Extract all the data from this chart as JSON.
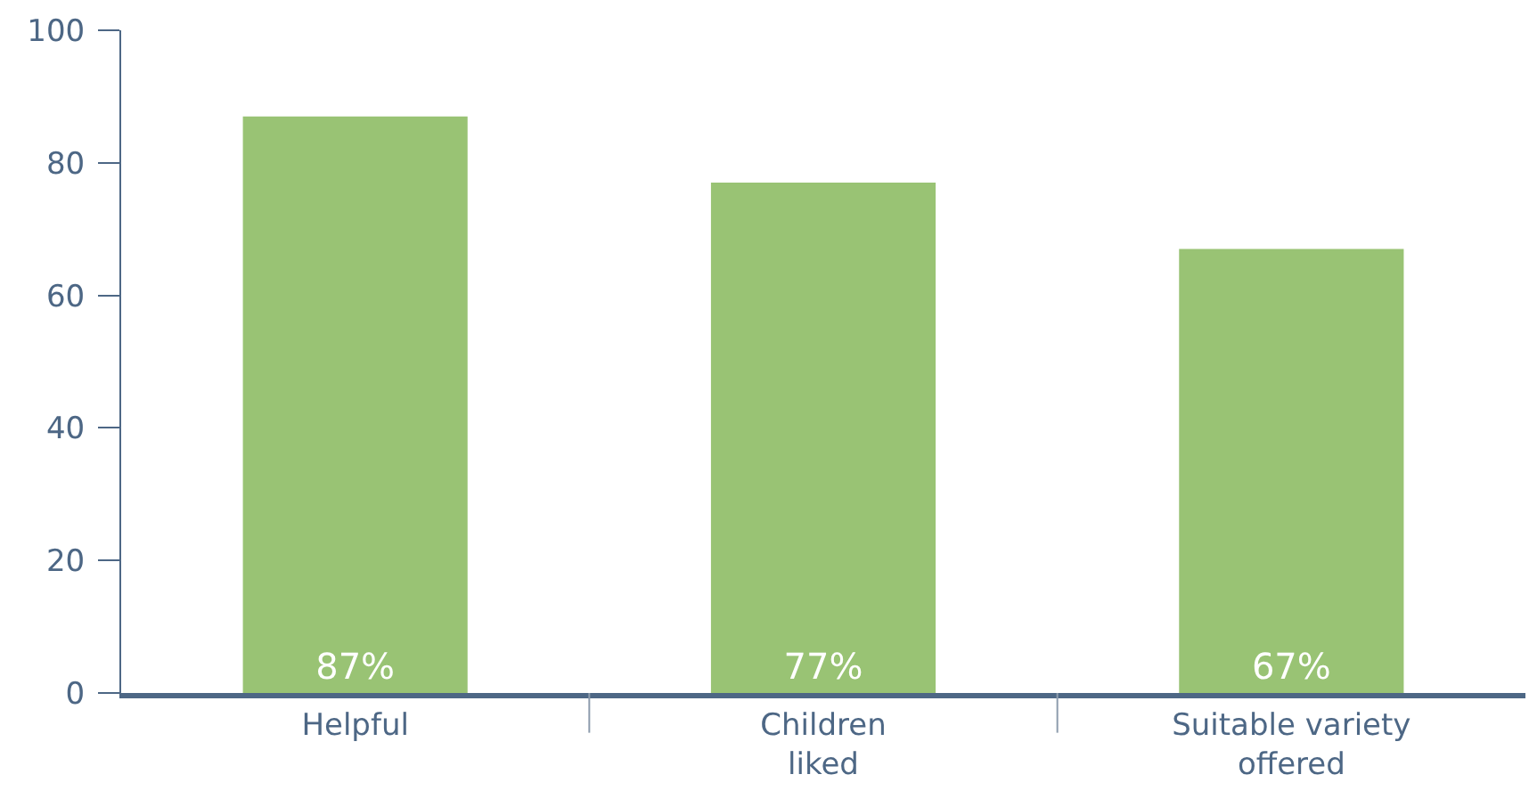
{
  "chart_data": {
    "type": "bar",
    "categories": [
      "Helpful",
      "Children liked",
      "Suitable variety offered"
    ],
    "values": [
      87,
      77,
      67
    ],
    "color": "#99c374",
    "value_labels": [
      "87%",
      "77%",
      "67%"
    ],
    "ylim": [
      0,
      100
    ],
    "yticks": [
      0,
      20,
      40,
      60,
      80,
      100
    ],
    "grid": false
  }
}
